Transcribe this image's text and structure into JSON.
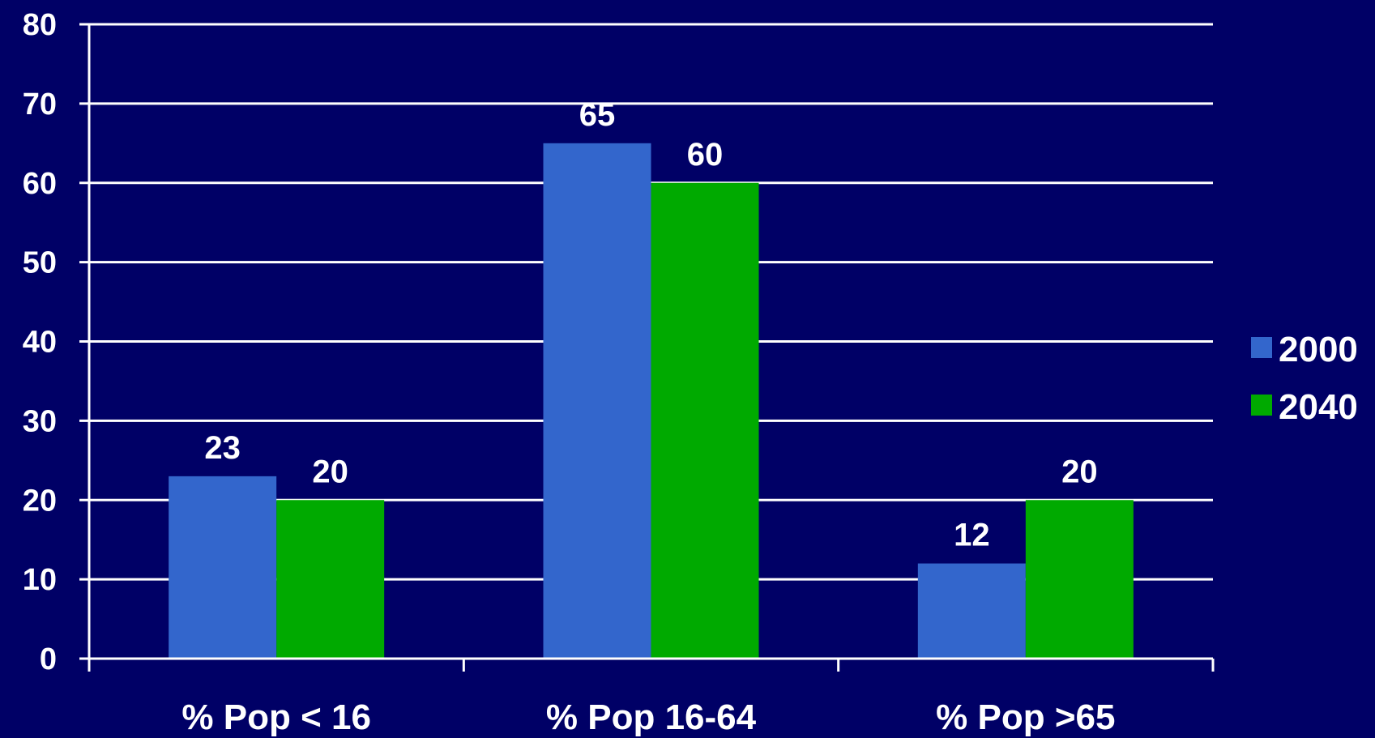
{
  "chart_data": {
    "type": "bar",
    "categories": [
      "% Pop < 16",
      "% Pop 16-64",
      "% Pop >65"
    ],
    "series": [
      {
        "name": "2000",
        "values": [
          23,
          65,
          12
        ],
        "color": "#3366cc"
      },
      {
        "name": "2040",
        "values": [
          20,
          60,
          20
        ],
        "color": "#00aa00"
      }
    ],
    "title": "",
    "xlabel": "",
    "ylabel": "",
    "ylim": [
      0,
      80
    ],
    "yticks": [
      0,
      10,
      20,
      30,
      40,
      50,
      60,
      70,
      80
    ],
    "grid": true,
    "legend_position": "right",
    "background_color": "#000066",
    "text_color": "#ffffff",
    "gridline_color": "#ffffff"
  }
}
